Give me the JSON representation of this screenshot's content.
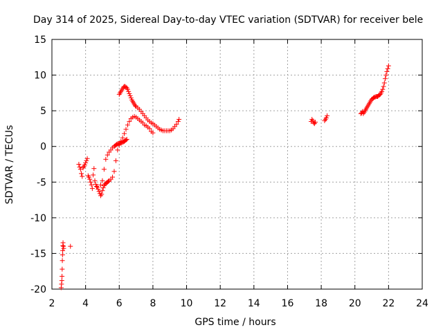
{
  "chart_data": {
    "type": "scatter",
    "title": "Day 314 of 2025, Sidereal Day-to-day VTEC variation (SDTVAR) for receiver bele",
    "xlabel": "GPS time / hours",
    "ylabel": "SDTVAR / TECUs",
    "xlim": [
      2,
      24
    ],
    "ylim": [
      -20,
      15
    ],
    "xticks": [
      2,
      4,
      6,
      8,
      10,
      12,
      14,
      16,
      18,
      20,
      22,
      24
    ],
    "yticks": [
      -20,
      -15,
      -10,
      -5,
      0,
      5,
      10,
      15
    ],
    "grid": true,
    "marker": "plus",
    "color": "#ff0000",
    "series": [
      {
        "name": "SDTVAR",
        "x": [
          2.55,
          2.57,
          2.59,
          2.6,
          2.61,
          2.62,
          2.63,
          2.64,
          2.65,
          2.66,
          2.68,
          2.7,
          3.1,
          3.6,
          3.65,
          3.7,
          3.75,
          3.8,
          3.85,
          3.9,
          3.95,
          4.0,
          4.05,
          4.1,
          4.15,
          4.2,
          4.25,
          4.3,
          4.35,
          4.4,
          4.45,
          4.5,
          4.55,
          4.6,
          4.65,
          4.7,
          4.75,
          4.8,
          4.85,
          4.9,
          4.95,
          5.0,
          5.05,
          5.1,
          5.15,
          5.2,
          5.25,
          5.3,
          5.35,
          5.4,
          5.5,
          5.6,
          5.7,
          5.8,
          5.9,
          6.0,
          6.1,
          6.2,
          6.3,
          6.4,
          6.5,
          6.6,
          6.7,
          6.8,
          6.9,
          7.0,
          7.1,
          7.2,
          7.3,
          7.4,
          7.5,
          7.6,
          7.7,
          7.8,
          7.9,
          8.0,
          6.0,
          6.05,
          6.1,
          6.15,
          6.2,
          6.25,
          6.3,
          6.35,
          6.4,
          6.45,
          6.5,
          6.55,
          6.6,
          6.65,
          6.7,
          6.75,
          6.8,
          6.85,
          6.9,
          6.95,
          7.0,
          7.1,
          7.2,
          7.3,
          7.4,
          7.5,
          7.6,
          7.7,
          7.8,
          7.9,
          8.0,
          8.1,
          8.2,
          8.3,
          8.4,
          8.5,
          8.6,
          8.7,
          8.8,
          8.9,
          9.0,
          9.1,
          9.2,
          9.3,
          9.4,
          9.5,
          9.55,
          4.9,
          5.0,
          5.1,
          5.2,
          5.3,
          5.4,
          5.5,
          5.6,
          5.7,
          5.75,
          5.8,
          5.85,
          5.9,
          5.95,
          6.0,
          6.05,
          6.1,
          6.15,
          6.2,
          6.25,
          6.3,
          6.35,
          6.4,
          6.45,
          17.4,
          17.45,
          17.5,
          17.55,
          17.6,
          17.65,
          18.2,
          18.25,
          18.3,
          18.35,
          20.35,
          20.4,
          20.45,
          20.5,
          20.55,
          20.6,
          20.65,
          20.7,
          20.75,
          20.8,
          20.85,
          20.9,
          20.95,
          21.0,
          21.05,
          21.1,
          21.15,
          21.2,
          21.25,
          21.3,
          21.35,
          21.4,
          21.45,
          21.5,
          21.55,
          21.6,
          21.65,
          21.7,
          21.75,
          21.8,
          21.85,
          21.9,
          21.95,
          22.0
        ],
        "y": [
          -19.8,
          -19.3,
          -18.8,
          -18.2,
          -17.2,
          -16.0,
          -15.2,
          -14.6,
          -13.9,
          -13.5,
          -14.0,
          -14.3,
          -14.0,
          -2.5,
          -2.9,
          -3.2,
          -3.8,
          -4.2,
          -3.0,
          -2.8,
          -2.6,
          -2.3,
          -2.0,
          -1.7,
          -4.1,
          -4.3,
          -4.6,
          -5.0,
          -5.4,
          -5.9,
          -4.0,
          -3.1,
          -4.8,
          -5.3,
          -5.6,
          -5.7,
          -6.0,
          -6.3,
          -6.6,
          -6.9,
          -6.7,
          -6.2,
          -5.8,
          -5.5,
          -5.3,
          -5.2,
          -5.1,
          -5.0,
          -4.9,
          -4.8,
          -4.6,
          -4.3,
          -3.5,
          -2.0,
          -0.5,
          0.2,
          0.7,
          1.2,
          1.8,
          2.4,
          3.0,
          3.5,
          3.9,
          4.1,
          4.2,
          4.1,
          3.9,
          3.7,
          3.5,
          3.3,
          3.0,
          2.9,
          2.7,
          2.5,
          2.1,
          1.9,
          7.3,
          7.5,
          7.7,
          7.9,
          8.1,
          8.3,
          8.4,
          8.4,
          8.3,
          8.2,
          8.0,
          7.7,
          7.4,
          7.1,
          6.8,
          6.5,
          6.3,
          6.1,
          5.9,
          5.7,
          5.6,
          5.4,
          5.2,
          4.9,
          4.6,
          4.3,
          4.0,
          3.7,
          3.5,
          3.3,
          3.2,
          3.0,
          2.8,
          2.6,
          2.4,
          2.3,
          2.2,
          2.2,
          2.2,
          2.2,
          2.2,
          2.3,
          2.5,
          2.8,
          3.1,
          3.5,
          3.8,
          -5.4,
          -4.8,
          -3.2,
          -1.8,
          -1.2,
          -0.8,
          -0.5,
          -0.2,
          0.0,
          0.1,
          0.2,
          0.3,
          0.35,
          0.4,
          0.4,
          0.45,
          0.5,
          0.55,
          0.6,
          0.65,
          0.7,
          0.8,
          0.9,
          1.0,
          3.5,
          3.8,
          3.6,
          3.3,
          3.2,
          3.4,
          3.6,
          3.8,
          4.0,
          4.3,
          4.6,
          4.7,
          4.9,
          4.6,
          4.8,
          5.0,
          5.2,
          5.4,
          5.6,
          5.8,
          6.0,
          6.2,
          6.4,
          6.6,
          6.7,
          6.8,
          6.9,
          6.9,
          7.0,
          7.0,
          7.0,
          7.1,
          7.2,
          7.3,
          7.5,
          7.7,
          8.0,
          8.4,
          8.9,
          9.5,
          10.0,
          10.5,
          10.9,
          11.3
        ]
      }
    ]
  }
}
